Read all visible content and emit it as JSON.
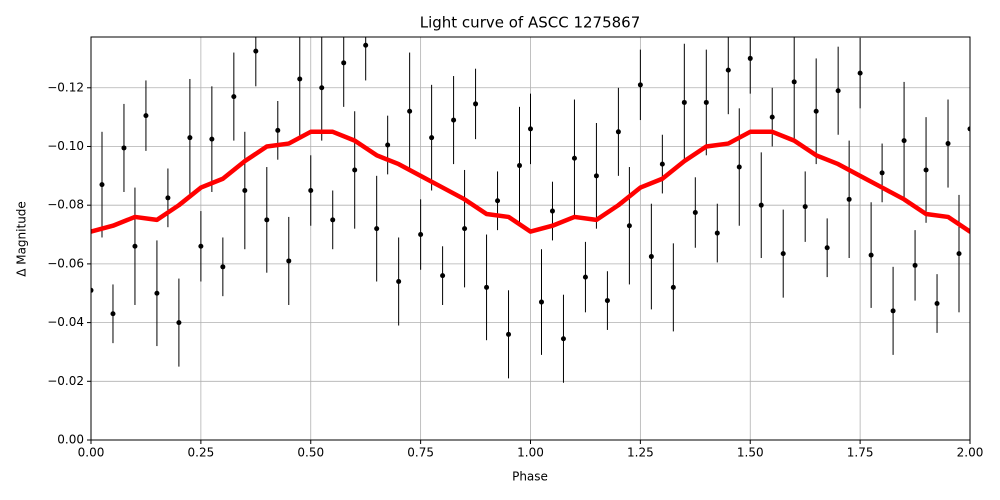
{
  "chart_data": {
    "type": "scatter",
    "title": "Light curve of ASCC 1275867",
    "xlabel": "Phase",
    "ylabel": "Δ Magnitude",
    "xlim": [
      0,
      2
    ],
    "ylim": [
      0,
      -0.1373
    ],
    "grid": true,
    "xticks": [
      {
        "value": 0,
        "label": "0.00"
      },
      {
        "value": 0.25,
        "label": "0.25"
      },
      {
        "value": 0.5,
        "label": "0.50"
      },
      {
        "value": 0.75,
        "label": "0.75"
      },
      {
        "value": 1,
        "label": "1.00"
      },
      {
        "value": 1.25,
        "label": "1.25"
      },
      {
        "value": 1.5,
        "label": "1.50"
      },
      {
        "value": 1.75,
        "label": "1.75"
      },
      {
        "value": 2,
        "label": "2.00"
      }
    ],
    "yticks": [
      {
        "value": 0,
        "label": "0.00"
      },
      {
        "value": -0.02,
        "label": "−0.02"
      },
      {
        "value": -0.04,
        "label": "−0.04"
      },
      {
        "value": -0.06,
        "label": "−0.06"
      },
      {
        "value": -0.08,
        "label": "−0.08"
      },
      {
        "value": -0.1,
        "label": "−0.10"
      },
      {
        "value": -0.12,
        "label": "−0.12"
      }
    ],
    "series": [
      {
        "kind": "errorbar",
        "color": "#000000",
        "x": [
          0,
          0.025,
          0.05,
          0.075,
          0.1,
          0.125,
          0.15,
          0.175,
          0.2,
          0.225,
          0.25,
          0.275,
          0.3,
          0.325,
          0.35,
          0.375,
          0.4,
          0.425,
          0.45,
          0.475,
          0.5,
          0.525,
          0.55,
          0.575,
          0.6,
          0.625,
          0.65,
          0.675,
          0.7,
          0.725,
          0.75,
          0.775,
          0.8,
          0.825,
          0.85,
          0.875,
          0.9,
          0.925,
          0.95,
          0.975,
          1,
          1.025,
          1.05,
          1.075,
          1.1,
          1.125,
          1.15,
          1.175,
          1.2,
          1.225,
          1.25,
          1.275,
          1.3,
          1.325,
          1.35,
          1.375,
          1.4,
          1.425,
          1.45,
          1.475,
          1.5,
          1.525,
          1.55,
          1.575,
          1.6,
          1.625,
          1.65,
          1.675,
          1.7,
          1.725,
          1.75,
          1.775,
          1.8,
          1.825,
          1.85,
          1.875,
          1.9,
          1.925,
          1.95,
          1.975,
          2
        ],
        "values": [
          -0.051,
          -0.087,
          -0.043,
          -0.0995,
          -0.066,
          -0.1105,
          -0.05,
          -0.0825,
          -0.04,
          -0.103,
          -0.066,
          -0.1025,
          -0.059,
          -0.117,
          -0.085,
          -0.1325,
          -0.075,
          -0.1055,
          -0.061,
          -0.123,
          -0.085,
          -0.12,
          -0.075,
          -0.1285,
          -0.092,
          -0.1345,
          -0.072,
          -0.1005,
          -0.054,
          -0.112,
          -0.07,
          -0.103,
          -0.056,
          -0.109,
          -0.072,
          -0.1145,
          -0.052,
          -0.0815,
          -0.036,
          -0.0935,
          -0.106,
          -0.047,
          -0.078,
          -0.0345,
          -0.096,
          -0.0555,
          -0.09,
          -0.0475,
          -0.105,
          -0.073,
          -0.121,
          -0.0625,
          -0.094,
          -0.052,
          -0.115,
          -0.0775,
          -0.115,
          -0.0705,
          -0.126,
          -0.093,
          -0.13,
          -0.08,
          -0.11,
          -0.0635,
          -0.122,
          -0.0795,
          -0.112,
          -0.0655,
          -0.119,
          -0.082,
          -0.125,
          -0.063,
          -0.091,
          -0.044,
          -0.102,
          -0.0595,
          -0.092,
          -0.0465,
          -0.101,
          -0.0635,
          -0.106
        ],
        "errors": [
          0.012,
          0.018,
          0.01,
          0.015,
          0.02,
          0.012,
          0.018,
          0.01,
          0.015,
          0.02,
          0.012,
          0.018,
          0.01,
          0.015,
          0.02,
          0.012,
          0.018,
          0.01,
          0.015,
          0.02,
          0.012,
          0.018,
          0.01,
          0.015,
          0.02,
          0.012,
          0.018,
          0.01,
          0.015,
          0.02,
          0.012,
          0.018,
          0.01,
          0.015,
          0.02,
          0.012,
          0.018,
          0.01,
          0.015,
          0.02,
          0.012,
          0.018,
          0.01,
          0.015,
          0.02,
          0.012,
          0.018,
          0.01,
          0.015,
          0.02,
          0.012,
          0.018,
          0.01,
          0.015,
          0.02,
          0.012,
          0.018,
          0.01,
          0.015,
          0.02,
          0.012,
          0.018,
          0.01,
          0.015,
          0.02,
          0.012,
          0.018,
          0.01,
          0.015,
          0.02,
          0.012,
          0.018,
          0.01,
          0.015,
          0.02,
          0.012,
          0.018,
          0.01,
          0.015,
          0.02,
          0.012
        ]
      },
      {
        "kind": "line",
        "color": "#ff0000",
        "x": [
          0,
          0.05,
          0.1,
          0.15,
          0.2,
          0.25,
          0.3,
          0.35,
          0.4,
          0.45,
          0.5,
          0.55,
          0.6,
          0.65,
          0.7,
          0.75,
          0.8,
          0.85,
          0.9,
          0.95,
          1,
          1.05,
          1.1,
          1.15,
          1.2,
          1.25,
          1.3,
          1.35,
          1.4,
          1.45,
          1.5,
          1.55,
          1.6,
          1.65,
          1.7,
          1.75,
          1.8,
          1.85,
          1.9,
          1.95,
          2
        ],
        "values": [
          -0.071,
          -0.073,
          -0.076,
          -0.075,
          -0.08,
          -0.086,
          -0.089,
          -0.095,
          -0.1,
          -0.101,
          -0.105,
          -0.105,
          -0.102,
          -0.097,
          -0.094,
          -0.09,
          -0.086,
          -0.082,
          -0.077,
          -0.076,
          -0.071,
          -0.073,
          -0.076,
          -0.075,
          -0.08,
          -0.086,
          -0.089,
          -0.095,
          -0.1,
          -0.101,
          -0.105,
          -0.105,
          -0.102,
          -0.097,
          -0.094,
          -0.09,
          -0.086,
          -0.082,
          -0.077,
          -0.076,
          -0.071
        ]
      }
    ]
  }
}
